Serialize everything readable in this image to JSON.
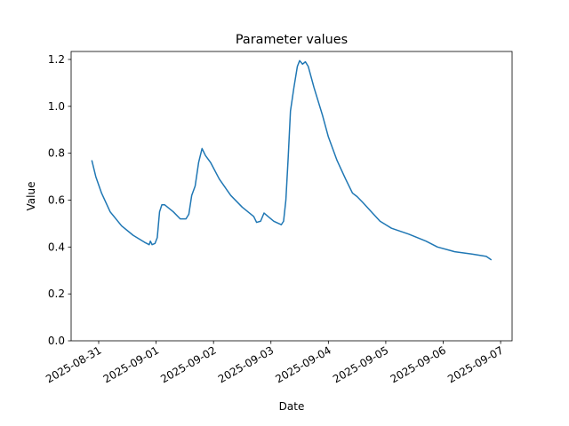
{
  "chart_data": {
    "type": "line",
    "title": "Parameter values",
    "xlabel": "Date",
    "ylabel": "Value",
    "x": [
      -0.12,
      -0.05,
      0.05,
      0.2,
      0.4,
      0.6,
      0.8,
      0.88,
      0.9,
      0.93,
      0.98,
      1.02,
      1.06,
      1.1,
      1.15,
      1.3,
      1.42,
      1.52,
      1.57,
      1.62,
      1.68,
      1.74,
      1.8,
      1.86,
      1.95,
      2.1,
      2.3,
      2.5,
      2.7,
      2.75,
      2.82,
      2.88,
      2.95,
      3.05,
      3.18,
      3.22,
      3.26,
      3.3,
      3.34,
      3.4,
      3.46,
      3.5,
      3.55,
      3.6,
      3.65,
      3.75,
      3.9,
      4.0,
      4.15,
      4.3,
      4.42,
      4.5,
      4.6,
      4.75,
      4.9,
      5.1,
      5.4,
      5.7,
      5.9,
      6.2,
      6.5,
      6.75,
      6.84
    ],
    "series": [
      {
        "name": "Value",
        "color": "#1f77b4",
        "values": [
          0.77,
          0.7,
          0.63,
          0.55,
          0.49,
          0.45,
          0.42,
          0.41,
          0.425,
          0.41,
          0.415,
          0.44,
          0.55,
          0.58,
          0.58,
          0.55,
          0.52,
          0.52,
          0.54,
          0.62,
          0.66,
          0.76,
          0.82,
          0.79,
          0.76,
          0.69,
          0.62,
          0.57,
          0.53,
          0.505,
          0.51,
          0.545,
          0.53,
          0.51,
          0.495,
          0.51,
          0.6,
          0.78,
          0.98,
          1.08,
          1.17,
          1.195,
          1.18,
          1.19,
          1.17,
          1.08,
          0.96,
          0.87,
          0.77,
          0.69,
          0.63,
          0.615,
          0.59,
          0.55,
          0.51,
          0.48,
          0.455,
          0.425,
          0.4,
          0.38,
          0.37,
          0.36,
          0.345
        ]
      }
    ],
    "xlim": [
      -0.48,
      7.2
    ],
    "xticks": [
      {
        "value": 0,
        "label": "2025-08-31"
      },
      {
        "value": 1,
        "label": "2025-09-01"
      },
      {
        "value": 2,
        "label": "2025-09-02"
      },
      {
        "value": 3,
        "label": "2025-09-03"
      },
      {
        "value": 4,
        "label": "2025-09-04"
      },
      {
        "value": 5,
        "label": "2025-09-05"
      },
      {
        "value": 6,
        "label": "2025-09-06"
      },
      {
        "value": 7,
        "label": "2025-09-07"
      }
    ],
    "ylim": [
      0,
      1.234
    ],
    "yticks": [
      {
        "value": 0,
        "label": "0.0"
      },
      0.2,
      0.4,
      0.6,
      0.8,
      {
        "value": 1,
        "label": "1.0"
      },
      1.2
    ]
  }
}
